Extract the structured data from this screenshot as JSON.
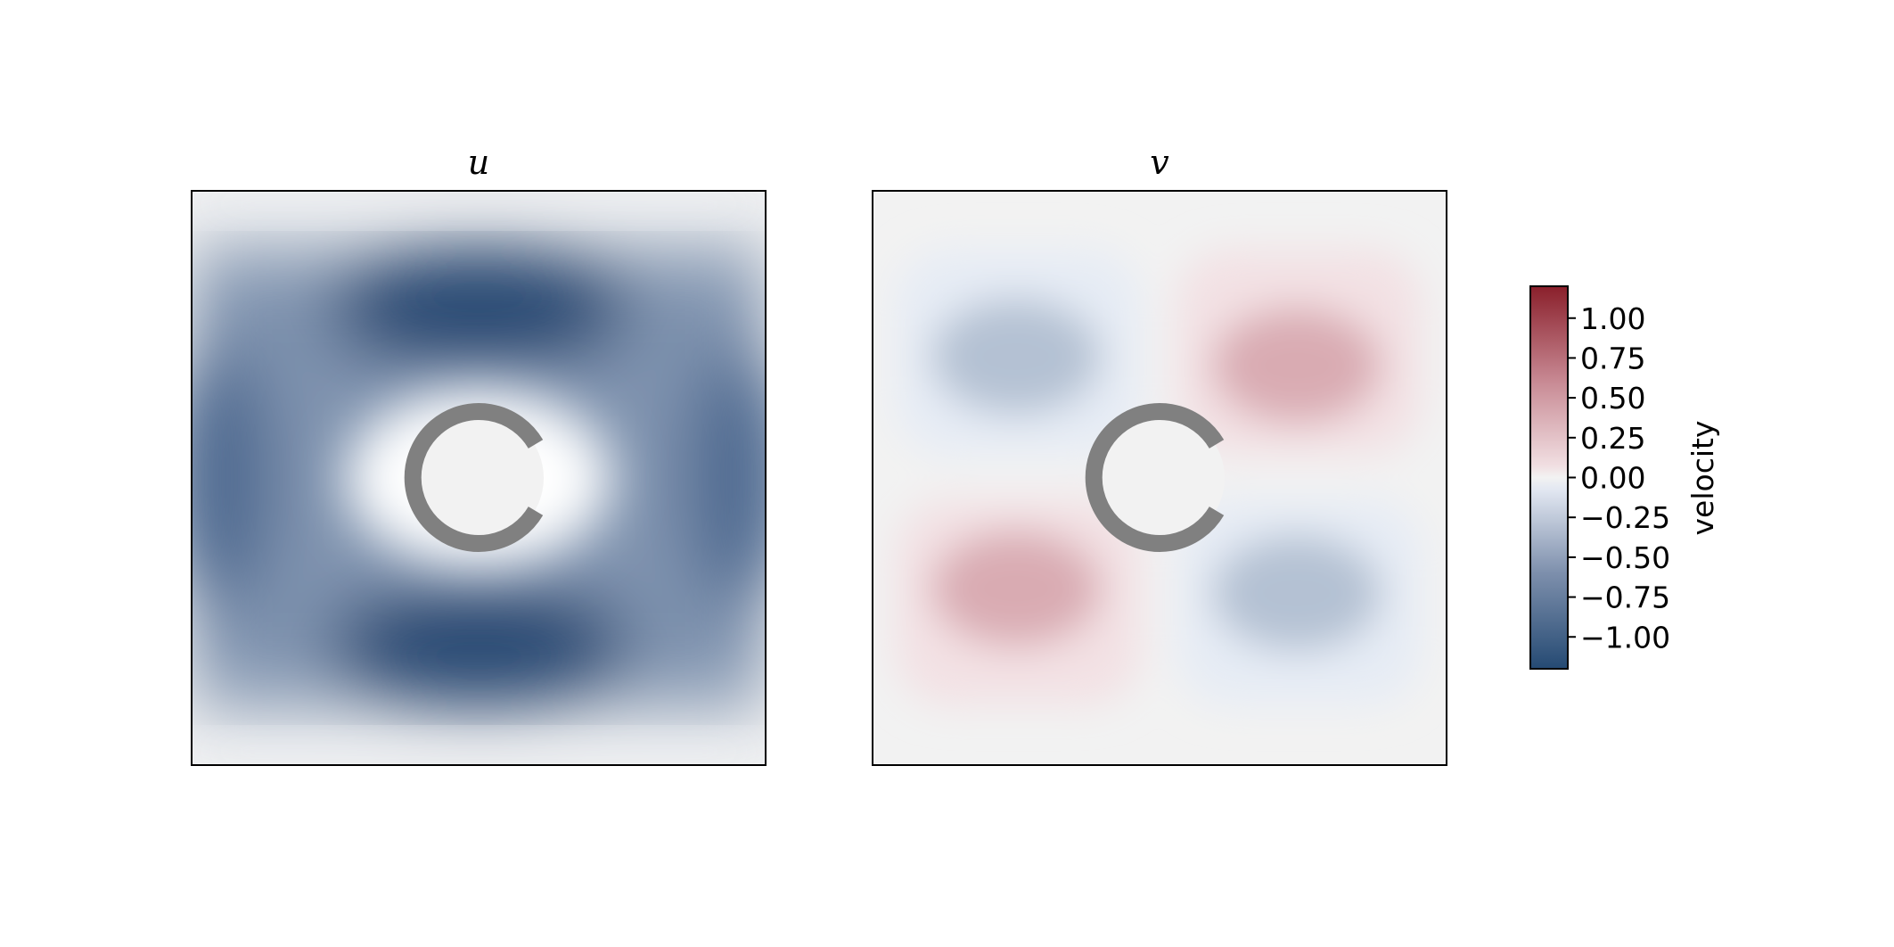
{
  "chart_data": [
    {
      "type": "heatmap",
      "title": "u",
      "field": "u",
      "value_range": [
        -1.0,
        0.0
      ],
      "description_of_pattern": "strong negative velocity above and below the obstacle, near zero around the obstacle and at top/bottom edges",
      "obstacle": "c-shaped ring, open to the right"
    },
    {
      "type": "heatmap",
      "title": "v",
      "field": "v",
      "value_range": [
        -0.35,
        0.35
      ],
      "quadrants": {
        "upper_left": -0.35,
        "upper_right": 0.35,
        "lower_left": 0.35,
        "lower_right": -0.35
      },
      "obstacle": "c-shaped ring, open to the right"
    }
  ],
  "colorbar": {
    "label": "velocity",
    "vmin": -1.2,
    "vmax": 1.2,
    "ticks": [
      1.0,
      0.75,
      0.5,
      0.25,
      0.0,
      -0.25,
      -0.5,
      -0.75,
      -1.0
    ],
    "tick_labels": [
      "1.00",
      "0.75",
      "0.50",
      "0.25",
      "0.00",
      "−0.25",
      "−0.50",
      "−0.75",
      "−1.00"
    ],
    "colormap": {
      "negative_end": "#254a73",
      "center": "#f2f2f2",
      "positive_end": "#8a1f2b"
    }
  },
  "colors": {
    "obstacle": "#808080",
    "background_inside_obstacle": "#f2f2f2"
  }
}
